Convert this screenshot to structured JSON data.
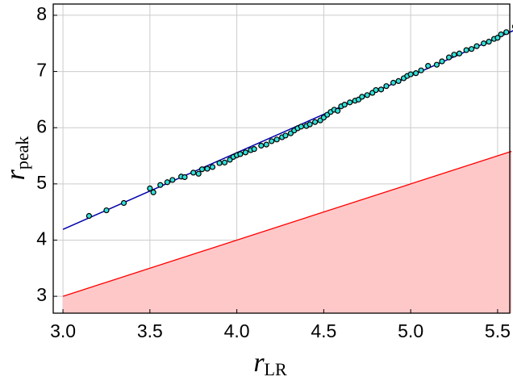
{
  "chart_data": {
    "type": "scatter",
    "xlabel": {
      "symbol": "r",
      "subscript": "LR"
    },
    "ylabel": {
      "symbol": "r",
      "subscript": "peak"
    },
    "xlim": [
      2.944,
      5.57
    ],
    "ylim": [
      2.7,
      8.2
    ],
    "xticks": [
      {
        "value": 3.0,
        "label": "3.0"
      },
      3.5,
      {
        "value": 4.0,
        "label": "4.0"
      },
      4.5,
      {
        "value": 5.0,
        "label": "5.0"
      },
      5.5
    ],
    "yticks": [
      3,
      4,
      5,
      6,
      7,
      8
    ],
    "grid": true,
    "series": [
      {
        "type": "area",
        "color": "#ff0000",
        "fill": "#ffc8c8",
        "x": [
          3.0,
          5.58
        ],
        "y": [
          3.0,
          5.58
        ]
      },
      {
        "type": "line",
        "color": "#0000aa",
        "x": [
          3.0,
          5.6
        ],
        "y": [
          4.19,
          7.74
        ]
      },
      {
        "type": "scatter",
        "color": "#33e0d8",
        "edgecolor": "#000000",
        "x": [
          3.15,
          3.25,
          3.35,
          3.5,
          3.52,
          3.56,
          3.6,
          3.63,
          3.68,
          3.7,
          3.75,
          3.78,
          3.8,
          3.83,
          3.86,
          3.9,
          3.93,
          3.96,
          3.98,
          4.0,
          4.02,
          4.05,
          4.08,
          4.1,
          4.14,
          4.17,
          4.2,
          4.23,
          4.26,
          4.28,
          4.31,
          4.33,
          4.35,
          4.37,
          4.4,
          4.42,
          4.45,
          4.48,
          4.5,
          4.52,
          4.54,
          4.56,
          4.58,
          4.6,
          4.62,
          4.65,
          4.68,
          4.7,
          4.72,
          4.75,
          4.78,
          4.8,
          4.83,
          4.86,
          4.9,
          4.93,
          4.96,
          4.98,
          5.0,
          5.03,
          5.06,
          5.1,
          5.15,
          5.18,
          5.22,
          5.25,
          5.28,
          5.32,
          5.35,
          5.38,
          5.42,
          5.45,
          5.48,
          5.5,
          5.52,
          5.55,
          5.6
        ],
        "y": [
          4.43,
          4.53,
          4.66,
          4.92,
          4.85,
          4.98,
          5.03,
          5.07,
          5.13,
          5.12,
          5.2,
          5.18,
          5.26,
          5.27,
          5.3,
          5.37,
          5.38,
          5.43,
          5.48,
          5.51,
          5.53,
          5.56,
          5.6,
          5.62,
          5.68,
          5.7,
          5.76,
          5.79,
          5.83,
          5.86,
          5.9,
          5.95,
          5.99,
          6.02,
          6.03,
          6.06,
          6.1,
          6.13,
          6.18,
          6.23,
          6.28,
          6.32,
          6.3,
          6.38,
          6.41,
          6.45,
          6.48,
          6.5,
          6.55,
          6.58,
          6.62,
          6.67,
          6.68,
          6.74,
          6.8,
          6.83,
          6.88,
          6.92,
          6.95,
          6.97,
          7.02,
          7.1,
          7.12,
          7.18,
          7.25,
          7.3,
          7.32,
          7.38,
          7.4,
          7.45,
          7.5,
          7.53,
          7.58,
          7.6,
          7.66,
          7.7,
          7.8
        ]
      }
    ]
  }
}
